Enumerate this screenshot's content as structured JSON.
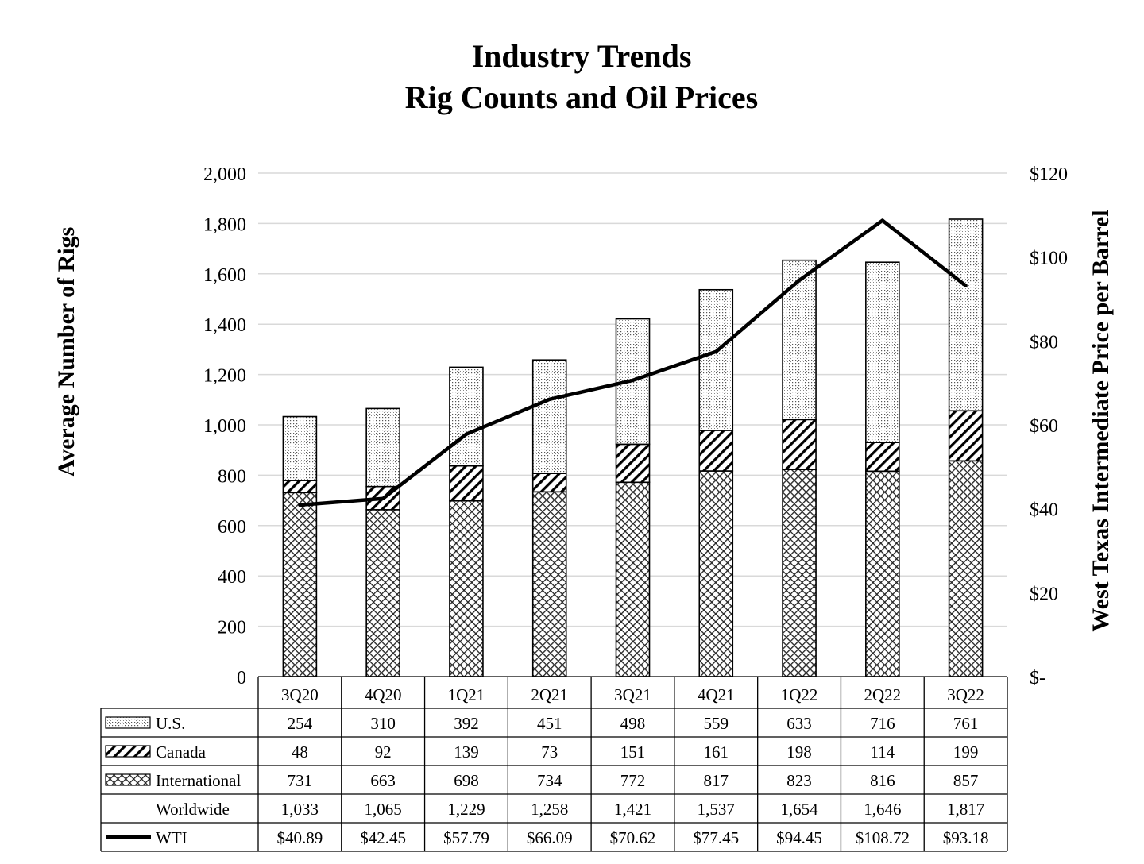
{
  "chart_data": {
    "type": "bar",
    "stacked": true,
    "title": "Industry Trends",
    "subtitle": "Rig Counts and Oil Prices",
    "ylabel": "Average Number of Rigs",
    "y2label": "West Texas Intermediate Price per Barrel",
    "ylim": [
      0,
      2000
    ],
    "y_ticks": [
      "0",
      "200",
      "400",
      "600",
      "800",
      "1,000",
      "1,200",
      "1,400",
      "1,600",
      "1,800",
      "2,000"
    ],
    "y2lim": [
      0,
      120
    ],
    "y2_ticks": [
      "$-",
      "$20",
      "$40",
      "$60",
      "$80",
      "$100",
      "$120"
    ],
    "grid": true,
    "categories": [
      "3Q20",
      "4Q20",
      "1Q21",
      "2Q21",
      "3Q21",
      "4Q21",
      "1Q22",
      "2Q22",
      "3Q22"
    ],
    "series": [
      {
        "name": "International",
        "pattern": "crosshatch",
        "values": [
          731,
          663,
          698,
          734,
          772,
          817,
          823,
          816,
          857
        ],
        "labels": [
          "731",
          "663",
          "698",
          "734",
          "772",
          "817",
          "823",
          "816",
          "857"
        ]
      },
      {
        "name": "Canada",
        "pattern": "diagonal",
        "values": [
          48,
          92,
          139,
          73,
          151,
          161,
          198,
          114,
          199
        ],
        "labels": [
          "48",
          "92",
          "139",
          "73",
          "151",
          "161",
          "198",
          "114",
          "199"
        ]
      },
      {
        "name": "U.S.",
        "pattern": "dots",
        "values": [
          254,
          310,
          392,
          451,
          498,
          559,
          633,
          716,
          761
        ],
        "labels": [
          "254",
          "310",
          "392",
          "451",
          "498",
          "559",
          "633",
          "716",
          "761"
        ]
      }
    ],
    "worldwide": {
      "name": "Worldwide",
      "labels": [
        "1,033",
        "1,065",
        "1,229",
        "1,258",
        "1,421",
        "1,537",
        "1,654",
        "1,646",
        "1,817"
      ]
    },
    "line": {
      "name": "WTI",
      "axis": "right",
      "values": [
        40.89,
        42.45,
        57.79,
        66.09,
        70.62,
        77.45,
        94.45,
        108.72,
        93.18
      ],
      "labels": [
        "$40.89",
        "$42.45",
        "$57.79",
        "$66.09",
        "$70.62",
        "$77.45",
        "$94.45",
        "$108.72",
        "$93.18"
      ]
    },
    "table_rows": [
      {
        "name": "U.S.",
        "legend": "dots"
      },
      {
        "name": "Canada",
        "legend": "diagonal"
      },
      {
        "name": "International",
        "legend": "crosshatch"
      },
      {
        "name": "Worldwide",
        "legend": "none"
      },
      {
        "name": "WTI",
        "legend": "line"
      }
    ],
    "colors": {
      "ink": "#000000",
      "grid": "#d9d9d9",
      "background": "#ffffff"
    }
  }
}
